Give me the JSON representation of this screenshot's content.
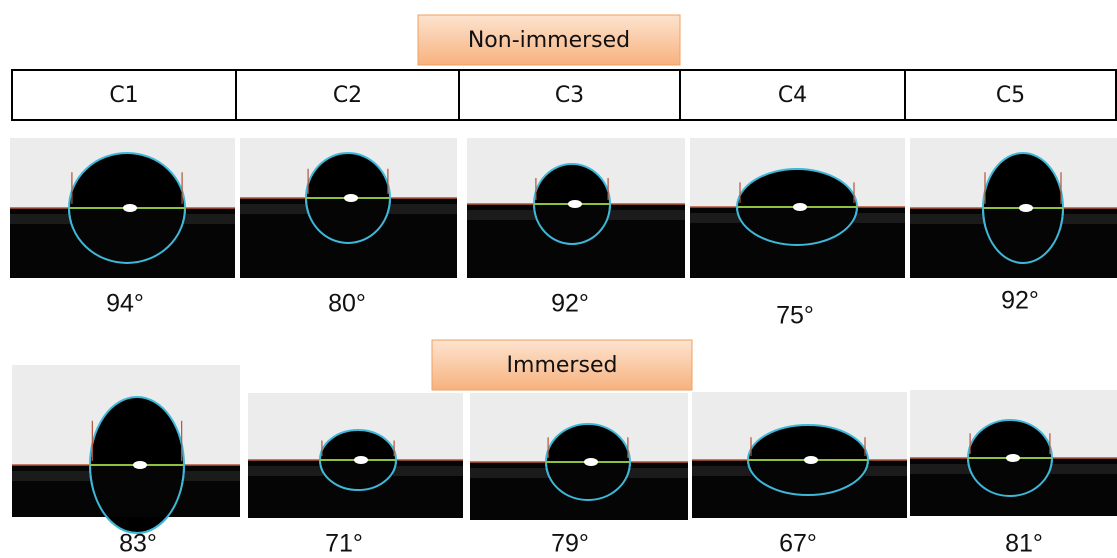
{
  "columns": [
    "C1",
    "C2",
    "C3",
    "C4",
    "C5"
  ],
  "sections": [
    {
      "title": "Non-immersed",
      "angles": [
        "94°",
        "80°",
        "92°",
        "75°",
        "92°"
      ]
    },
    {
      "title": "Immersed",
      "angles": [
        "83°",
        "71°",
        "79°",
        "67°",
        "81°"
      ]
    }
  ]
}
